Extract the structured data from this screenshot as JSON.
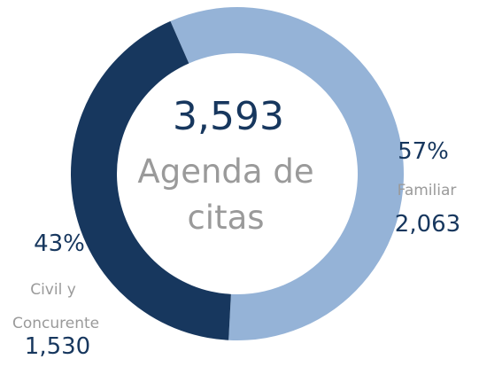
{
  "chart_data": {
    "type": "pie",
    "title": "Agenda de citas",
    "total": 3593,
    "total_label": "3,593",
    "categories": [
      "Familiar",
      "Civil y Concurente"
    ],
    "values": [
      2063,
      1530
    ],
    "value_labels": [
      "2,063",
      "1,530"
    ],
    "percents": [
      57,
      43
    ],
    "percent_labels": [
      "57%",
      "43%"
    ],
    "colors": [
      "#95b3d7",
      "#17375e"
    ],
    "donut": true
  }
}
